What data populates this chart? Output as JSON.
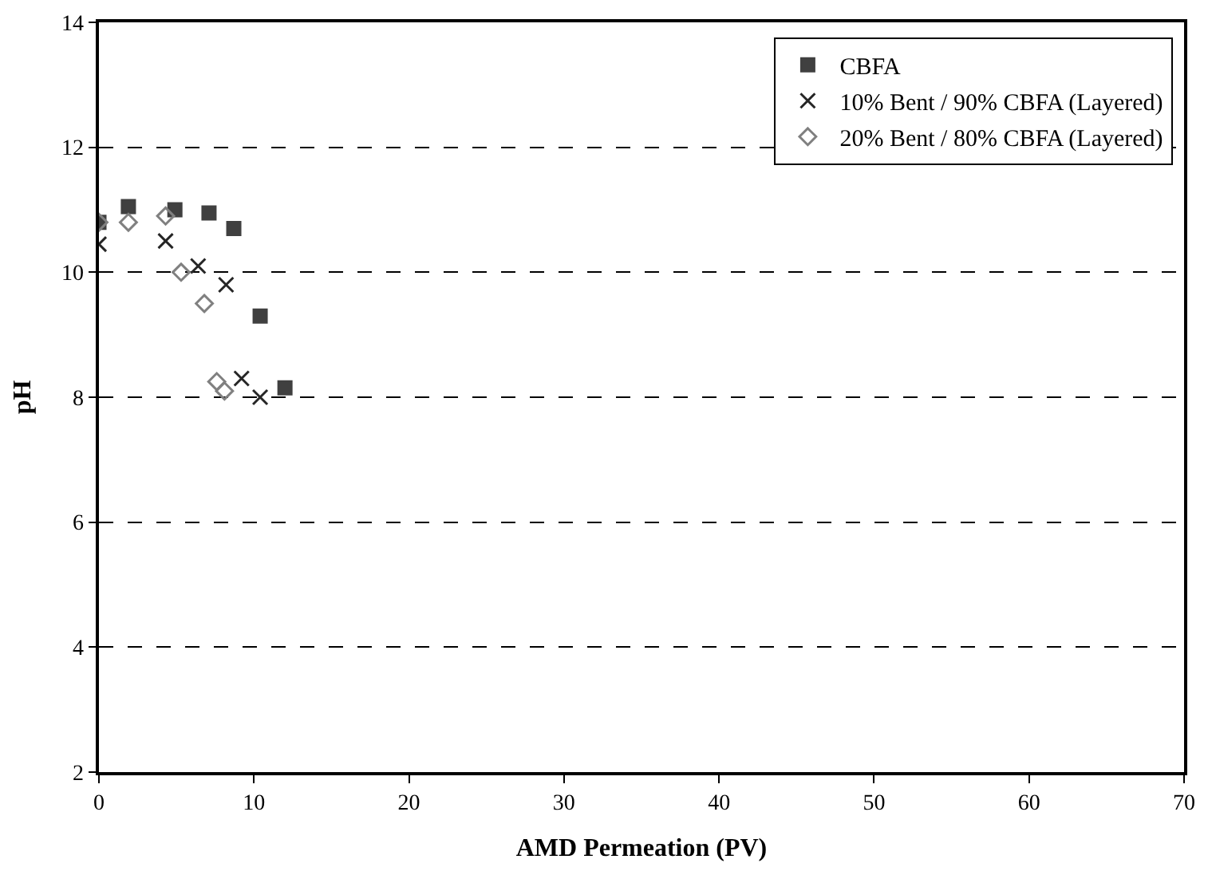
{
  "chart_data": {
    "type": "scatter",
    "xlabel": "AMD Permeation (PV)",
    "ylabel": "pH",
    "xlim": [
      0,
      70
    ],
    "xticks": [
      0,
      10,
      20,
      30,
      40,
      50,
      60,
      70
    ],
    "ylim": [
      2,
      14
    ],
    "yticks": [
      2,
      4,
      6,
      8,
      10,
      12,
      14
    ],
    "grid": "y",
    "legend": "top right",
    "series": [
      {
        "name": "CBFA",
        "color": "#404040",
        "marker": "square",
        "x": [
          0,
          1.9,
          4.9,
          7.1,
          8.7,
          10.4,
          12.0
        ],
        "values": [
          10.8,
          11.05,
          11.0,
          10.95,
          10.7,
          9.3,
          8.15
        ]
      },
      {
        "name": "10% Bent / 90% CBFA (Layered)",
        "color": "#262626",
        "marker": "cross",
        "x": [
          0,
          4.3,
          6.4,
          8.2,
          9.2,
          10.4
        ],
        "values": [
          10.45,
          10.5,
          10.1,
          9.8,
          8.3,
          8.0
        ]
      },
      {
        "name": "20% Bent / 80% CBFA (Layered)",
        "color": "#808080",
        "marker": "diamond",
        "x": [
          0,
          1.9,
          4.3,
          5.3,
          6.8,
          7.6,
          8.1
        ],
        "values": [
          10.8,
          10.8,
          10.9,
          10.0,
          9.5,
          8.25,
          8.1
        ]
      }
    ]
  }
}
